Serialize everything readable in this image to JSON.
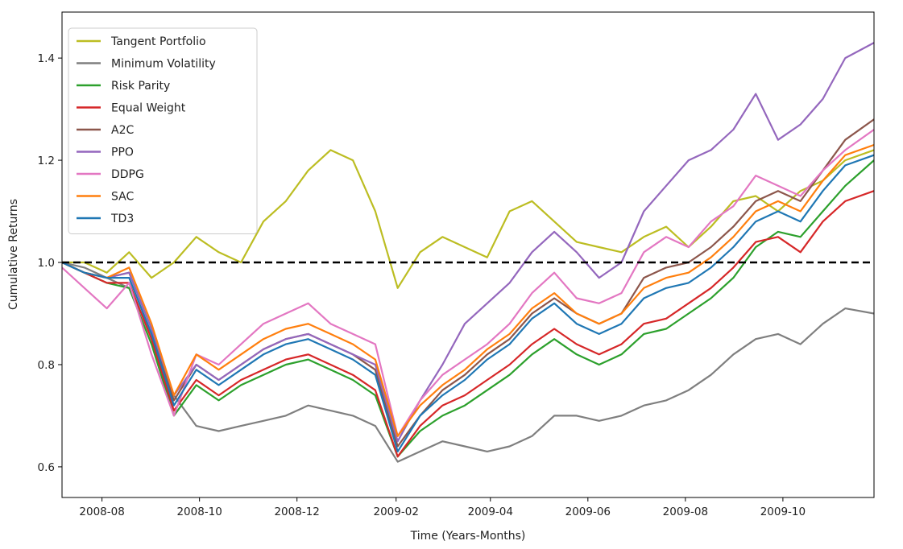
{
  "chart_data": {
    "type": "line",
    "xlabel": "Time (Years-Months)",
    "ylabel": "Cumulative Returns",
    "xlim": [
      "2008-07-07",
      "2009-11-27"
    ],
    "ylim": [
      0.54,
      1.49
    ],
    "xticks": [
      "2008-08",
      "2008-10",
      "2008-12",
      "2009-02",
      "2009-04",
      "2009-06",
      "2009-08",
      "2009-10"
    ],
    "xtick_dates": [
      "2008-08-01",
      "2008-10-01",
      "2008-12-01",
      "2009-02-01",
      "2009-04-01",
      "2009-06-01",
      "2009-08-01",
      "2009-10-01"
    ],
    "yticks": [
      "0.6",
      "0.8",
      "1.0",
      "1.2",
      "1.4"
    ],
    "ytick_values": [
      0.6,
      0.8,
      1.0,
      1.2,
      1.4
    ],
    "reference_line": {
      "y": 1.0,
      "style": "dashed",
      "color": "#000000"
    },
    "legend_position": "top-left",
    "grid": false,
    "dates": [
      "2008-07-07",
      "2008-07-21",
      "2008-08-04",
      "2008-08-18",
      "2008-09-01",
      "2008-09-15",
      "2008-09-29",
      "2008-10-13",
      "2008-10-27",
      "2008-11-10",
      "2008-11-24",
      "2008-12-08",
      "2008-12-22",
      "2009-01-05",
      "2009-01-19",
      "2009-02-02",
      "2009-02-16",
      "2009-03-02",
      "2009-03-16",
      "2009-03-30",
      "2009-04-13",
      "2009-04-27",
      "2009-05-11",
      "2009-05-25",
      "2009-06-08",
      "2009-06-22",
      "2009-07-06",
      "2009-07-20",
      "2009-08-03",
      "2009-08-17",
      "2009-08-31",
      "2009-09-14",
      "2009-09-28",
      "2009-10-12",
      "2009-10-26",
      "2009-11-09",
      "2009-11-27"
    ],
    "series": [
      {
        "name": "Tangent Portfolio",
        "color": "#bcbd22",
        "values": [
          1.0,
          1.0,
          0.98,
          1.02,
          0.97,
          1.0,
          1.05,
          1.02,
          1.0,
          1.08,
          1.12,
          1.18,
          1.22,
          1.2,
          1.1,
          0.95,
          1.02,
          1.05,
          1.03,
          1.01,
          1.1,
          1.12,
          1.08,
          1.04,
          1.03,
          1.02,
          1.05,
          1.07,
          1.03,
          1.07,
          1.12,
          1.13,
          1.1,
          1.14,
          1.16,
          1.2,
          1.22
        ]
      },
      {
        "name": "Minimum Volatility",
        "color": "#7f7f7f",
        "values": [
          1.0,
          0.99,
          0.97,
          0.95,
          0.86,
          0.74,
          0.68,
          0.67,
          0.68,
          0.69,
          0.7,
          0.72,
          0.71,
          0.7,
          0.68,
          0.61,
          0.63,
          0.65,
          0.64,
          0.63,
          0.64,
          0.66,
          0.7,
          0.7,
          0.69,
          0.7,
          0.72,
          0.73,
          0.75,
          0.78,
          0.82,
          0.85,
          0.86,
          0.84,
          0.88,
          0.91,
          0.9
        ]
      },
      {
        "name": "Risk Parity",
        "color": "#2ca02c",
        "values": [
          1.0,
          0.98,
          0.96,
          0.95,
          0.84,
          0.7,
          0.76,
          0.73,
          0.76,
          0.78,
          0.8,
          0.81,
          0.79,
          0.77,
          0.74,
          0.62,
          0.67,
          0.7,
          0.72,
          0.75,
          0.78,
          0.82,
          0.85,
          0.82,
          0.8,
          0.82,
          0.86,
          0.87,
          0.9,
          0.93,
          0.97,
          1.03,
          1.06,
          1.05,
          1.1,
          1.15,
          1.2
        ]
      },
      {
        "name": "Equal Weight",
        "color": "#d62728",
        "values": [
          1.0,
          0.98,
          0.96,
          0.96,
          0.85,
          0.71,
          0.77,
          0.74,
          0.77,
          0.79,
          0.81,
          0.82,
          0.8,
          0.78,
          0.75,
          0.62,
          0.68,
          0.72,
          0.74,
          0.77,
          0.8,
          0.84,
          0.87,
          0.84,
          0.82,
          0.84,
          0.88,
          0.89,
          0.92,
          0.95,
          0.99,
          1.04,
          1.05,
          1.02,
          1.08,
          1.12,
          1.14
        ]
      },
      {
        "name": "A2C",
        "color": "#8c564b",
        "values": [
          1.0,
          0.98,
          0.97,
          0.98,
          0.87,
          0.73,
          0.8,
          0.77,
          0.8,
          0.83,
          0.85,
          0.86,
          0.84,
          0.82,
          0.79,
          0.64,
          0.7,
          0.75,
          0.78,
          0.82,
          0.85,
          0.9,
          0.93,
          0.9,
          0.88,
          0.9,
          0.97,
          0.99,
          1.0,
          1.03,
          1.07,
          1.12,
          1.14,
          1.12,
          1.18,
          1.24,
          1.28
        ]
      },
      {
        "name": "PPO",
        "color": "#9467bd",
        "values": [
          1.0,
          0.98,
          0.97,
          0.98,
          0.87,
          0.74,
          0.8,
          0.77,
          0.8,
          0.83,
          0.85,
          0.86,
          0.84,
          0.82,
          0.8,
          0.65,
          0.73,
          0.8,
          0.88,
          0.92,
          0.96,
          1.02,
          1.06,
          1.02,
          0.97,
          1.0,
          1.1,
          1.15,
          1.2,
          1.22,
          1.26,
          1.33,
          1.24,
          1.27,
          1.32,
          1.4,
          1.43
        ]
      },
      {
        "name": "DDPG",
        "color": "#e377c2",
        "values": [
          0.99,
          0.95,
          0.91,
          0.96,
          0.82,
          0.7,
          0.82,
          0.8,
          0.84,
          0.88,
          0.9,
          0.92,
          0.88,
          0.86,
          0.84,
          0.66,
          0.73,
          0.78,
          0.81,
          0.84,
          0.88,
          0.94,
          0.98,
          0.93,
          0.92,
          0.94,
          1.02,
          1.05,
          1.03,
          1.08,
          1.11,
          1.17,
          1.15,
          1.13,
          1.18,
          1.22,
          1.26
        ]
      },
      {
        "name": "SAC",
        "color": "#ff7f0e",
        "values": [
          1.0,
          0.98,
          0.97,
          0.99,
          0.88,
          0.74,
          0.82,
          0.79,
          0.82,
          0.85,
          0.87,
          0.88,
          0.86,
          0.84,
          0.81,
          0.66,
          0.72,
          0.76,
          0.79,
          0.83,
          0.86,
          0.91,
          0.94,
          0.9,
          0.88,
          0.9,
          0.95,
          0.97,
          0.98,
          1.01,
          1.05,
          1.1,
          1.12,
          1.1,
          1.16,
          1.21,
          1.23
        ]
      },
      {
        "name": "TD3",
        "color": "#1f77b4",
        "values": [
          1.0,
          0.98,
          0.97,
          0.97,
          0.86,
          0.72,
          0.79,
          0.76,
          0.79,
          0.82,
          0.84,
          0.85,
          0.83,
          0.81,
          0.78,
          0.63,
          0.7,
          0.74,
          0.77,
          0.81,
          0.84,
          0.89,
          0.92,
          0.88,
          0.86,
          0.88,
          0.93,
          0.95,
          0.96,
          0.99,
          1.03,
          1.08,
          1.1,
          1.08,
          1.14,
          1.19,
          1.21
        ]
      }
    ]
  }
}
